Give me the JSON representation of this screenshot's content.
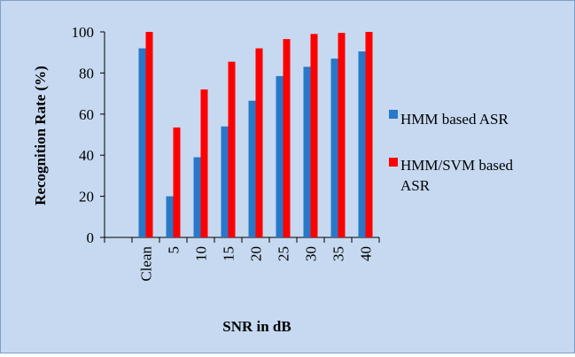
{
  "chart_data": {
    "type": "bar",
    "title": "",
    "xlabel": "SNR in dB",
    "ylabel": "Recognition Rate (%)",
    "categories": [
      "Clean",
      "5",
      "10",
      "15",
      "20",
      "25",
      "30",
      "35",
      "40"
    ],
    "ylim": [
      0,
      100
    ],
    "yticks": [
      "0",
      "20",
      "40",
      "60",
      "80",
      "100"
    ],
    "grid": false,
    "legend_position": "right",
    "series": [
      {
        "name": "HMM based ASR",
        "color": "#2878c8",
        "values": [
          92,
          20,
          39,
          54,
          66.5,
          78.5,
          83,
          87,
          90.5
        ]
      },
      {
        "name": "HMM/SVM based ASR",
        "color": "#ff0000",
        "values": [
          100,
          53.5,
          72,
          85.5,
          92,
          96.5,
          99,
          99.5,
          100
        ]
      }
    ]
  }
}
